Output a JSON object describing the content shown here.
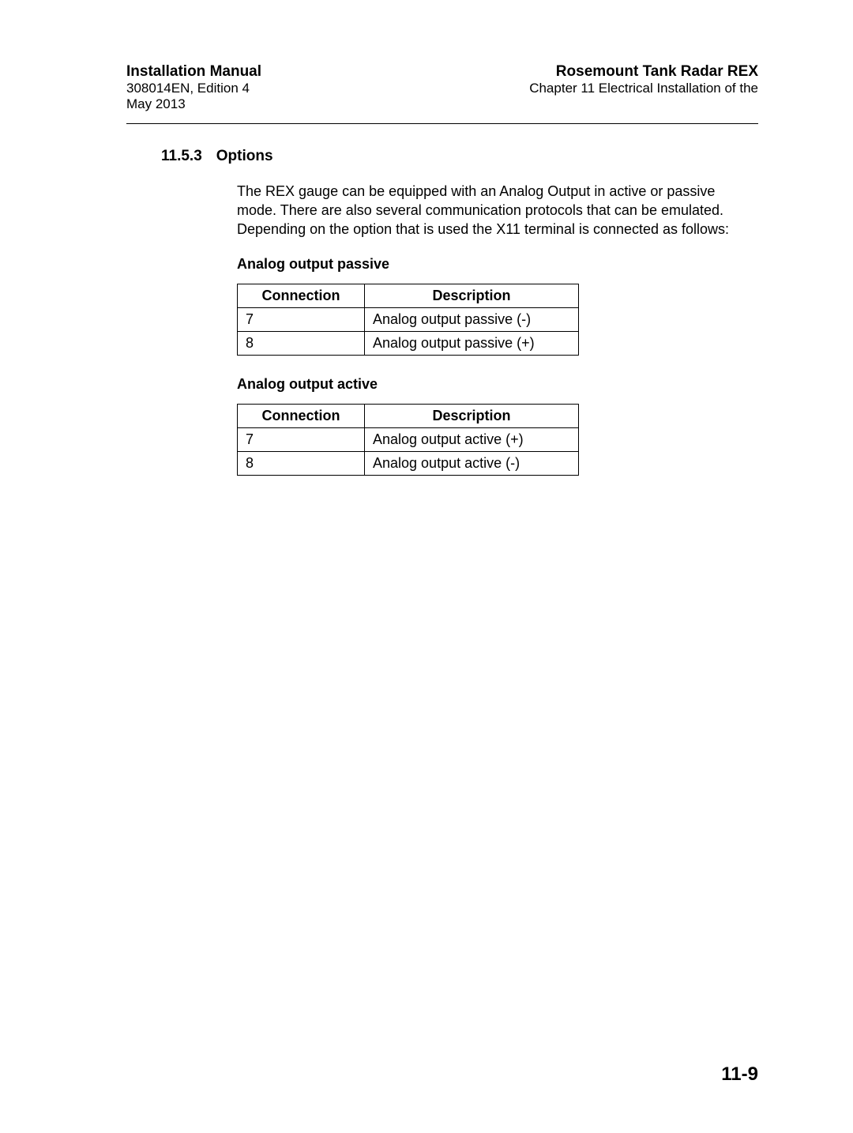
{
  "header": {
    "left": {
      "title": "Installation Manual",
      "edition": "308014EN, Edition 4",
      "date": "May 2013"
    },
    "right": {
      "title": "Rosemount Tank Radar REX",
      "chapter": "Chapter 11 Electrical Installation of the"
    }
  },
  "section": {
    "number": "11.5.3",
    "title": "Options"
  },
  "intro_text": "The REX gauge can be equipped with an Analog Output in active or passive mode. There are also several communication protocols that can be emulated. Depending on the option that is used the X11 terminal is connected as follows:",
  "table_passive": {
    "heading": "Analog output passive",
    "columns": [
      "Connection",
      "Description"
    ],
    "rows": [
      [
        "7",
        "Analog output passive (-)"
      ],
      [
        "8",
        "Analog output passive (+)"
      ]
    ]
  },
  "table_active": {
    "heading": "Analog output active",
    "columns": [
      "Connection",
      "Description"
    ],
    "rows": [
      [
        "7",
        "Analog output active (+)"
      ],
      [
        "8",
        "Analog output active (-)"
      ]
    ]
  },
  "page_number": "11-9"
}
